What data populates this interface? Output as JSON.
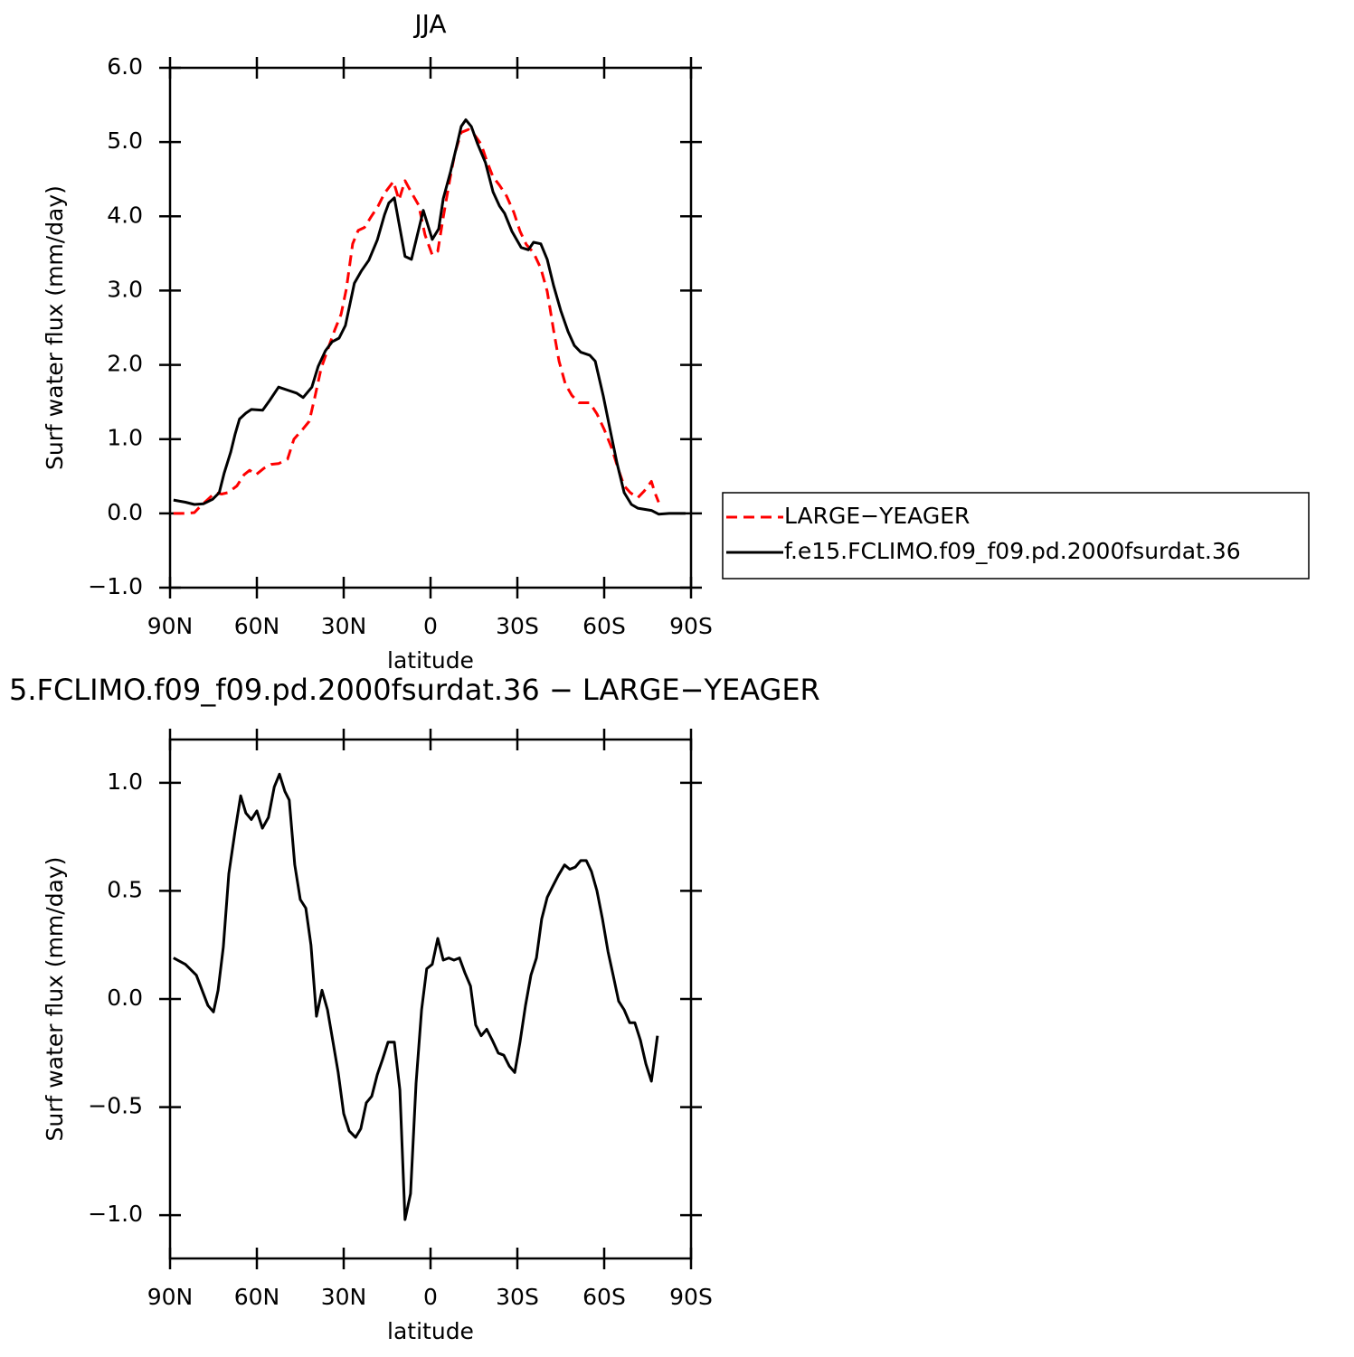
{
  "chart_data": [
    {
      "type": "line",
      "title": "JJA",
      "xlabel": "latitude",
      "ylabel": "Surf water flux (mm/day)",
      "xlim": [
        90,
        -90
      ],
      "ylim": [
        -1,
        6
      ],
      "xticks": [
        {
          "value": 90,
          "label": "90N"
        },
        {
          "value": 60,
          "label": "60N"
        },
        {
          "value": 30,
          "label": "30N"
        },
        0,
        {
          "value": -30,
          "label": "30S"
        },
        {
          "value": -60,
          "label": "60S"
        },
        {
          "value": -90,
          "label": "90S"
        }
      ],
      "yticks": [
        {
          "value": -1,
          "label": "−1.0"
        },
        {
          "value": 0,
          "label": "0.0"
        },
        {
          "value": 1,
          "label": "1.0"
        },
        {
          "value": 2,
          "label": "2.0"
        },
        {
          "value": 3,
          "label": "3.0"
        },
        {
          "value": 4,
          "label": "4.0"
        },
        {
          "value": 5,
          "label": "5.0"
        },
        {
          "value": 6,
          "label": "6.0"
        }
      ],
      "legend": "outside-right",
      "series": [
        {
          "name": "LARGE−YEAGER",
          "color": "#ff0000",
          "dash": true,
          "x": [
            88.8,
            84.7,
            81.6,
            79.4,
            76.9,
            74.4,
            72.2,
            70,
            66.9,
            64.4,
            62.5,
            60.3,
            57.5,
            55,
            52.5,
            49.4,
            47.2,
            44,
            41.9,
            40,
            37.8,
            35.3,
            33.1,
            30.9,
            29.1,
            26.9,
            25,
            22.8,
            20.6,
            18.1,
            15.9,
            12.8,
            10.9,
            8.8,
            6.3,
            4.1,
            1.9,
            -0.6,
            -2.5,
            -4.4,
            -6.6,
            -8.4,
            -10.6,
            -13.1,
            -15.3,
            -17.5,
            -19.4,
            -21.6,
            -23.8,
            -26.3,
            -28.8,
            -30.9,
            -33.1,
            -35.6,
            -38.1,
            -40.3,
            -42.5,
            -44.4,
            -46.6,
            -48.8,
            -51.3,
            -55,
            -57.5,
            -60,
            -62.5,
            -65,
            -66.9,
            -69,
            -71.6,
            -73.8,
            -76.3,
            -77.5,
            -78.8
          ],
          "values": [
            0,
            0,
            0.01,
            0.1,
            0.19,
            0.28,
            0.26,
            0.28,
            0.37,
            0.52,
            0.58,
            0.52,
            0.61,
            0.66,
            0.67,
            0.73,
            1.0,
            1.14,
            1.24,
            1.56,
            1.95,
            2.23,
            2.47,
            2.68,
            3.02,
            3.63,
            3.81,
            3.85,
            3.99,
            4.14,
            4.31,
            4.47,
            4.22,
            4.48,
            4.3,
            4.15,
            3.75,
            3.48,
            3.53,
            3.99,
            4.48,
            4.85,
            5.13,
            5.17,
            5.09,
            4.97,
            4.75,
            4.53,
            4.42,
            4.27,
            4.05,
            3.8,
            3.62,
            3.51,
            3.3,
            2.99,
            2.47,
            2.05,
            1.74,
            1.59,
            1.49,
            1.49,
            1.34,
            1.13,
            0.89,
            0.58,
            0.37,
            0.28,
            0.21,
            0.3,
            0.43,
            0.28,
            0.15
          ]
        },
        {
          "name": "f.e15.FCLIMO.f09_f09.pd.2000fsurdat.36",
          "color": "#000000",
          "dash": false,
          "x": [
            88.8,
            84.7,
            81.6,
            78.4,
            75.3,
            73,
            71.3,
            69,
            67.5,
            66,
            63.8,
            61.9,
            58,
            55.6,
            52.5,
            49.4,
            46.3,
            44,
            41,
            38.8,
            36.3,
            34,
            31.6,
            29.4,
            26.3,
            23.8,
            21.3,
            18.4,
            15.9,
            14.4,
            12.5,
            8.8,
            6.6,
            2.5,
            -0.6,
            -2.8,
            -4.4,
            -6.9,
            -9,
            -10.6,
            -12.2,
            -14.1,
            -16.3,
            -19,
            -21.6,
            -23.8,
            -25.6,
            -28.1,
            -31.3,
            -33.8,
            -35.6,
            -38.1,
            -40.3,
            -42.5,
            -45,
            -47.5,
            -49.7,
            -51.9,
            -55,
            -56.9,
            -59.7,
            -62.2,
            -64.4,
            -66.9,
            -69.4,
            -71.6,
            -76.3,
            -78.8,
            -82.5,
            -88.1
          ],
          "values": [
            0.18,
            0.15,
            0.12,
            0.13,
            0.19,
            0.28,
            0.54,
            0.83,
            1.07,
            1.27,
            1.35,
            1.4,
            1.39,
            1.52,
            1.7,
            1.66,
            1.62,
            1.56,
            1.7,
            1.98,
            2.19,
            2.31,
            2.36,
            2.53,
            3.1,
            3.27,
            3.41,
            3.68,
            4.02,
            4.18,
            4.25,
            3.46,
            3.42,
            4.08,
            3.69,
            3.83,
            4.24,
            4.6,
            4.94,
            5.21,
            5.3,
            5.21,
            4.97,
            4.72,
            4.33,
            4.14,
            4.04,
            3.8,
            3.58,
            3.55,
            3.65,
            3.63,
            3.42,
            3.07,
            2.73,
            2.45,
            2.26,
            2.17,
            2.13,
            2.05,
            1.58,
            1.1,
            0.68,
            0.28,
            0.12,
            0.07,
            0.04,
            -0.01,
            0,
            0
          ]
        }
      ]
    },
    {
      "type": "line",
      "title": "5.FCLIMO.f09_f09.pd.2000fsurdat.36 − LARGE−YEAGER",
      "xlabel": "latitude",
      "ylabel": "Surf water flux (mm/day)",
      "xlim": [
        90,
        -90
      ],
      "ylim": [
        -1.2,
        1.2
      ],
      "xticks": [
        {
          "value": 90,
          "label": "90N"
        },
        {
          "value": 60,
          "label": "60N"
        },
        {
          "value": 30,
          "label": "30N"
        },
        0,
        {
          "value": -30,
          "label": "30S"
        },
        {
          "value": -60,
          "label": "60S"
        },
        {
          "value": -90,
          "label": "90S"
        }
      ],
      "yticks": [
        {
          "value": -1,
          "label": "−1.0"
        },
        {
          "value": -0.5,
          "label": "−0.5"
        },
        {
          "value": 0,
          "label": "0.0"
        },
        0.5,
        {
          "value": 1,
          "label": "1.0"
        }
      ],
      "color": "#000000",
      "x": [
        88.8,
        84.7,
        80.9,
        76.9,
        75,
        73.4,
        71.6,
        69.7,
        67.5,
        65.6,
        63.8,
        61.9,
        60,
        58.1,
        56,
        54,
        52.2,
        50.3,
        48.8,
        46.9,
        45,
        43.1,
        41.3,
        39.4,
        37.5,
        35.6,
        33.8,
        31.9,
        30,
        28.1,
        25.9,
        24.1,
        22.2,
        20.3,
        18.4,
        16.6,
        14.7,
        12.5,
        10.6,
        8.8,
        6.9,
        5,
        3.1,
        1.3,
        -0.6,
        -2.5,
        -4.4,
        -6.3,
        -8.1,
        -10,
        -11.9,
        -13.8,
        -15.6,
        -17.5,
        -19.4,
        -21.3,
        -23.4,
        -25.3,
        -27.2,
        -29.1,
        -30.9,
        -32.8,
        -34.7,
        -36.6,
        -38.4,
        -40.3,
        -42.2,
        -44.1,
        -46.3,
        -48.1,
        -50,
        -51.9,
        -53.8,
        -55.6,
        -57.5,
        -59.4,
        -61.3,
        -63.1,
        -65,
        -66.9,
        -68.8,
        -70.6,
        -72.5,
        -74.4,
        -76.3,
        -78.4
      ],
      "values": [
        0.19,
        0.16,
        0.11,
        -0.03,
        -0.06,
        0.04,
        0.24,
        0.58,
        0.78,
        0.94,
        0.86,
        0.83,
        0.87,
        0.79,
        0.84,
        0.98,
        1.04,
        0.96,
        0.92,
        0.62,
        0.46,
        0.42,
        0.25,
        -0.08,
        0.04,
        -0.05,
        -0.19,
        -0.34,
        -0.53,
        -0.61,
        -0.64,
        -0.6,
        -0.48,
        -0.45,
        -0.35,
        -0.28,
        -0.2,
        -0.2,
        -0.42,
        -1.02,
        -0.9,
        -0.39,
        -0.05,
        0.14,
        0.16,
        0.28,
        0.18,
        0.19,
        0.18,
        0.19,
        0.12,
        0.06,
        -0.12,
        -0.17,
        -0.14,
        -0.19,
        -0.25,
        -0.26,
        -0.31,
        -0.34,
        -0.2,
        -0.03,
        0.11,
        0.19,
        0.37,
        0.47,
        0.52,
        0.57,
        0.62,
        0.6,
        0.61,
        0.64,
        0.64,
        0.59,
        0.5,
        0.37,
        0.22,
        0.11,
        -0.01,
        -0.05,
        -0.11,
        -0.11,
        -0.19,
        -0.3,
        -0.38,
        -0.17
      ]
    }
  ]
}
